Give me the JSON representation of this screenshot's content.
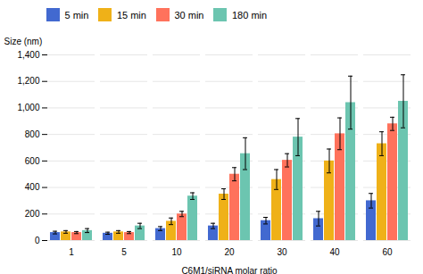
{
  "chart_data": {
    "type": "bar",
    "xlabel": "C6M1/siRNA molar ratio",
    "ylabel": "Size (nm)",
    "categories": [
      "1",
      "5",
      "10",
      "20",
      "30",
      "40",
      "60"
    ],
    "series": [
      {
        "name": "5 min",
        "values": [
          60,
          55,
          90,
          110,
          150,
          165,
          300
        ],
        "errors": [
          10,
          8,
          15,
          20,
          25,
          55,
          55
        ]
      },
      {
        "name": "15 min",
        "values": [
          65,
          65,
          145,
          350,
          460,
          600,
          730
        ],
        "errors": [
          10,
          10,
          25,
          40,
          75,
          90,
          90
        ]
      },
      {
        "name": "30 min",
        "values": [
          60,
          60,
          200,
          500,
          605,
          805,
          880
        ],
        "errors": [
          8,
          8,
          20,
          50,
          50,
          120,
          50
        ]
      },
      {
        "name": "180 min",
        "values": [
          75,
          110,
          335,
          655,
          780,
          1040,
          1050
        ],
        "errors": [
          15,
          20,
          25,
          120,
          140,
          200,
          200
        ]
      }
    ],
    "ylim": [
      0,
      1400
    ],
    "yticks": [
      0,
      200,
      400,
      600,
      800,
      1000,
      1200,
      1400
    ],
    "grid": true,
    "legend": "upper left"
  }
}
